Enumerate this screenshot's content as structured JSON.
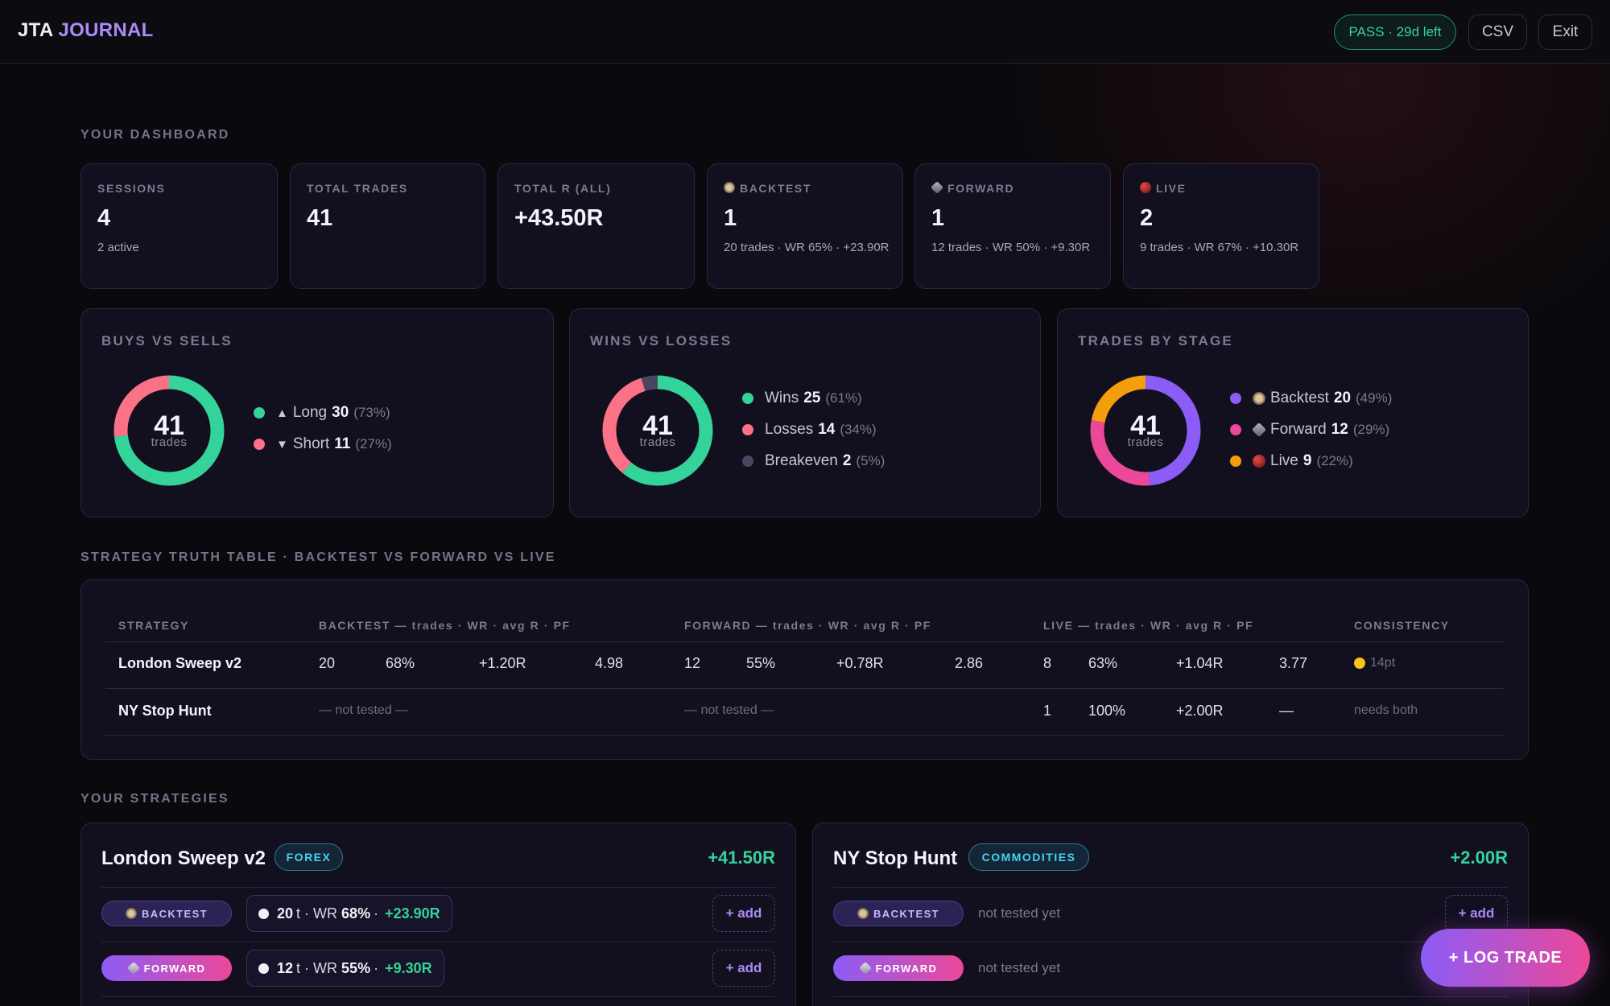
{
  "header": {
    "logo_a": "JTA",
    "logo_b": "JOURNAL",
    "pass_label": "PASS · 29d left",
    "csv_label": "CSV",
    "exit_label": "Exit"
  },
  "sections": {
    "dashboard": "YOUR DASHBOARD",
    "truth_table": "STRATEGY TRUTH TABLE · BACKTEST VS FORWARD VS LIVE",
    "strategies": "YOUR STRATEGIES"
  },
  "stats": [
    {
      "label": "SESSIONS",
      "value": "4",
      "sub": "2 active"
    },
    {
      "label": "TOTAL TRADES",
      "value": "41",
      "sub": ""
    },
    {
      "label": "TOTAL R (ALL)",
      "value": "+43.50R",
      "sub": ""
    },
    {
      "label": "BACKTEST",
      "value": "1",
      "sub": "20 trades · WR 65% · +23.90R",
      "icon": "clock-icon"
    },
    {
      "label": "FORWARD",
      "value": "1",
      "sub": "12 trades · WR 50% · +9.30R",
      "icon": "satellite-icon"
    },
    {
      "label": "LIVE",
      "value": "2",
      "sub": "9 trades · WR 67% · +10.30R",
      "icon": "red-dot-icon"
    }
  ],
  "donuts": [
    {
      "title": "BUYS VS SELLS",
      "center": "41",
      "center_sub": "trades",
      "items": [
        {
          "glyph": "▲",
          "label": "Long",
          "value": "30",
          "pct": "(73%)",
          "color": "#34d399",
          "n": 30
        },
        {
          "glyph": "▼",
          "label": "Short",
          "value": "11",
          "pct": "(27%)",
          "color": "#fb7185",
          "n": 11
        }
      ]
    },
    {
      "title": "WINS VS LOSSES",
      "center": "41",
      "center_sub": "trades",
      "items": [
        {
          "label": "Wins",
          "value": "25",
          "pct": "(61%)",
          "color": "#34d399",
          "n": 25
        },
        {
          "label": "Losses",
          "value": "14",
          "pct": "(34%)",
          "color": "#fb7185",
          "n": 14
        },
        {
          "label": "Breakeven",
          "value": "2",
          "pct": "(5%)",
          "color": "#4b4660",
          "n": 2
        }
      ]
    },
    {
      "title": "TRADES BY STAGE",
      "center": "41",
      "center_sub": "trades",
      "items": [
        {
          "label": "Backtest",
          "value": "20",
          "pct": "(49%)",
          "color": "#8b5cf6",
          "n": 20,
          "icon": "clock-icon"
        },
        {
          "label": "Forward",
          "value": "12",
          "pct": "(29%)",
          "color": "#ec4899",
          "n": 12,
          "icon": "satellite-icon"
        },
        {
          "label": "Live",
          "value": "9",
          "pct": "(22%)",
          "color": "#f59e0b",
          "n": 9,
          "icon": "red-dot-icon"
        }
      ]
    }
  ],
  "truth_table": {
    "headers": {
      "strategy": "STRATEGY",
      "backtest": "BACKTEST — trades · WR · avg R · PF",
      "forward": "FORWARD — trades · WR · avg R · PF",
      "live": "LIVE — trades · WR · avg R · PF",
      "consistency": "CONSISTENCY"
    },
    "rows": [
      {
        "name": "London Sweep v2",
        "bt": [
          "20",
          "68%",
          "+1.20R",
          "4.98"
        ],
        "fw": [
          "12",
          "55%",
          "+0.78R",
          "2.86"
        ],
        "lv": [
          "8",
          "63%",
          "+1.04R",
          "3.77"
        ],
        "consistency": "14pt"
      },
      {
        "name": "NY Stop Hunt",
        "bt_none": "— not tested —",
        "fw_none": "— not tested —",
        "lv": [
          "1",
          "100%",
          "+2.00R",
          "—"
        ],
        "consistency": "needs both"
      }
    ]
  },
  "strategies": [
    {
      "name": "London Sweep v2",
      "tag": "FOREX",
      "total": "+41.50R",
      "rows": [
        {
          "stage": "BACKTEST",
          "trades": "20",
          "t": "t · WR",
          "wr": "68%",
          "r": "+23.90R",
          "add": "+ add"
        },
        {
          "stage": "FORWARD",
          "trades": "12",
          "t": "t · WR",
          "wr": "55%",
          "r": "+9.30R",
          "add": "+ add"
        }
      ]
    },
    {
      "name": "NY Stop Hunt",
      "tag": "COMMODITIES",
      "total": "+2.00R",
      "rows": [
        {
          "stage": "BACKTEST",
          "none": "not tested yet",
          "add": "+ add"
        },
        {
          "stage": "FORWARD",
          "none": "not tested yet",
          "add": "+ add"
        }
      ]
    }
  ],
  "fab_label": "+ LOG TRADE"
}
